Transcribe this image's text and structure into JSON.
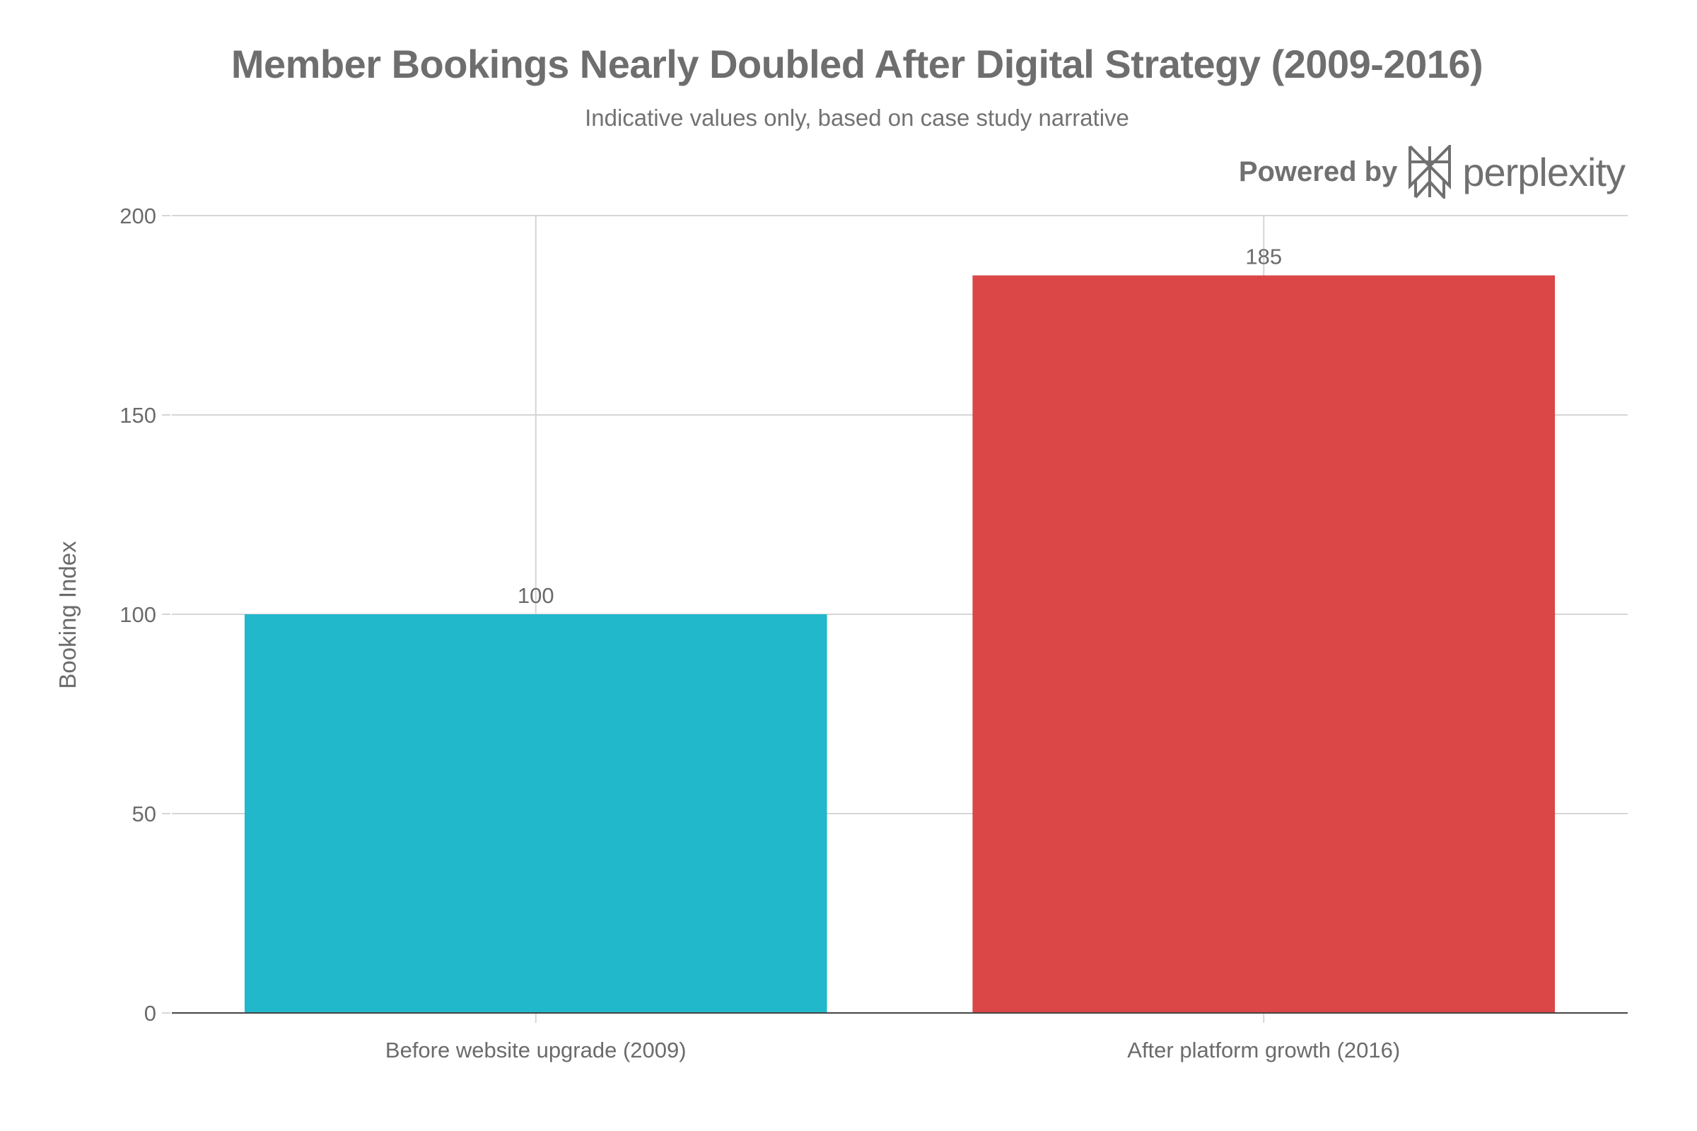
{
  "chart_data": {
    "type": "bar",
    "title": "Member Bookings Nearly Doubled After Digital Strategy (2009-2016)",
    "subtitle": "Indicative values only, based on case study narrative",
    "categories": [
      "Before website upgrade (2009)",
      "After platform growth (2016)"
    ],
    "values": [
      100,
      185
    ],
    "data_labels": [
      "100",
      "185"
    ],
    "colors": [
      "#21b8cc",
      "#db4647"
    ],
    "xlabel": "",
    "ylabel": "Booking Index",
    "ylim": [
      0,
      200
    ],
    "yticks": [
      0,
      50,
      100,
      150,
      200
    ],
    "grid": true,
    "legend": "none"
  },
  "branding": {
    "powered_by": "Powered by",
    "logo_text": "perplexity",
    "icon": "perplexity-logo-icon"
  }
}
